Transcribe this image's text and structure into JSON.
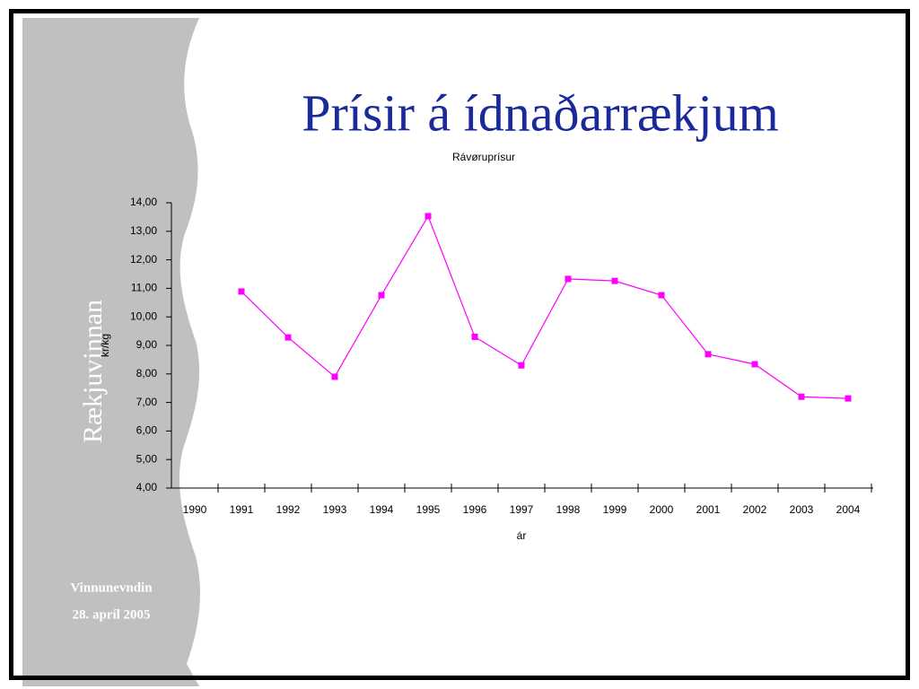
{
  "slide": {
    "title": "Prísir á ídnaðarrækjum",
    "side_label": "Rækjuvinnan",
    "footer": [
      "Vinnunevndin",
      "28. apríl 2005"
    ]
  },
  "chart_data": {
    "type": "line",
    "title": "Rávøruprísur",
    "x_label": "ár",
    "y_label": "kr/kg",
    "categories": [
      "1990",
      "1991",
      "1992",
      "1993",
      "1994",
      "1995",
      "1996",
      "1997",
      "1998",
      "1999",
      "2000",
      "2001",
      "2002",
      "2003",
      "2004"
    ],
    "values": [
      null,
      10.89,
      9.28,
      7.9,
      10.76,
      13.53,
      9.3,
      8.3,
      11.33,
      11.26,
      10.76,
      8.69,
      8.34,
      7.2,
      7.14
    ],
    "color": "#ff00ff",
    "ylim": [
      4,
      14
    ],
    "yticks": [
      {
        "value": 4,
        "label": "4,00"
      },
      {
        "value": 5,
        "label": "5,00"
      },
      {
        "value": 6,
        "label": "6,00"
      },
      {
        "value": 7,
        "label": "7,00"
      },
      {
        "value": 8,
        "label": "8,00"
      },
      {
        "value": 9,
        "label": "9,00"
      },
      {
        "value": 10,
        "label": "10,00"
      },
      {
        "value": 11,
        "label": "11,00"
      },
      {
        "value": 12,
        "label": "12,00"
      },
      {
        "value": 13,
        "label": "13,00"
      },
      {
        "value": 14,
        "label": "14,00"
      }
    ],
    "grid": false
  }
}
